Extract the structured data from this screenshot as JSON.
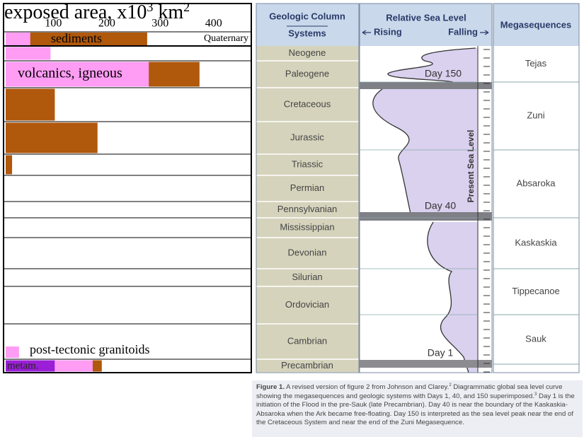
{
  "exposed_area": {
    "title_parts": [
      "exposed area, x10",
      "3",
      " km",
      "2"
    ],
    "ticks": [
      100,
      200,
      300,
      400
    ],
    "xlim": [
      0,
      460
    ],
    "labels": {
      "sediments": "sediments",
      "quaternary": "Quaternary",
      "volcanics": "volcanics, igneous",
      "granitoids": "post-tectonic granitoids",
      "metam": "metam."
    },
    "colors": {
      "sediments": "#b0580c",
      "volcanics": "#ff9cf4",
      "metamorphic": "#9b1fd6"
    },
    "quaternary": {
      "volcanics": 46,
      "sediments": 219
    }
  },
  "geologic_column": {
    "header": [
      "Geologic Column",
      "Systems"
    ],
    "systems": [
      {
        "name": "Neogene",
        "volcanics": 84
      },
      {
        "name": "Paleogene",
        "volcanics": 268,
        "sediments": 95
      },
      {
        "name": "Cretaceous",
        "sediments": 92
      },
      {
        "name": "Jurassic",
        "sediments": 172
      },
      {
        "name": "Triassic",
        "sediments": 12
      },
      {
        "name": "Permian"
      },
      {
        "name": "Pennsylvanian"
      },
      {
        "name": "Mississippian"
      },
      {
        "name": "Devonian"
      },
      {
        "name": "Silurian"
      },
      {
        "name": "Ordovician"
      },
      {
        "name": "Cambrian",
        "granitoids": 25
      },
      {
        "name": "Precambrian",
        "metamorphic": 92,
        "volcanics": 71,
        "sediments": 17
      }
    ]
  },
  "sea_level": {
    "header": "Relative Sea Level",
    "rising": "Rising",
    "falling": "Falling",
    "days": [
      "Day 150",
      "Day 40",
      "Day 1"
    ],
    "present": "Present Sea Level"
  },
  "megasequences": {
    "header": "Megasequences",
    "names": [
      "Tejas",
      "Zuni",
      "Absaroka",
      "Kaskaskia",
      "Tippecanoe",
      "Sauk"
    ]
  },
  "caption": {
    "label": "Figure 1.",
    "parts": [
      " A revised version of figure 2 from Johnson and Clarey.",
      "2",
      " Diagrammatic global sea level curve showing the megasequences and geologic systems with Days 1, 40, and 150 superimposed.",
      "3",
      " Day 1 is the initiation of the Flood in the pre-Sauk (late Precambrian). Day 40 is near the boundary of the Kaskaskia-Absaroka when the Ark became free-floating. Day 150 is interpreted as the sea level peak near the end of the Cretaceous System and near the end of the Zuni Megasequence."
    ]
  }
}
